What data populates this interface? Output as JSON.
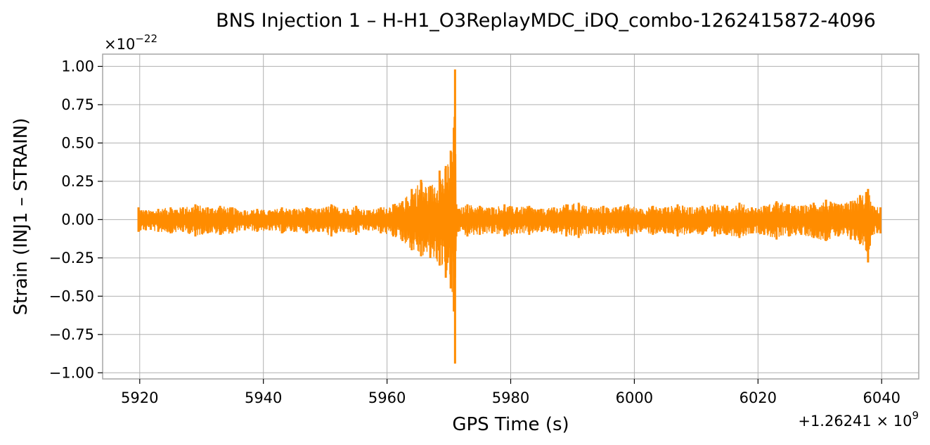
{
  "chart_data": {
    "type": "line",
    "title": "BNS Injection 1 – H-H1_O3ReplayMDC_iDQ_combo-1262415872-4096",
    "xlabel": "GPS Time (s)",
    "ylabel": "Strain (INJ1 – STRAIN)",
    "x_offset_text": "+1.26241",
    "x_offset_exponent": "9",
    "y_scale_text": "×10",
    "y_scale_exponent": "−22",
    "x_ticks": [
      5920,
      5940,
      5960,
      5980,
      6000,
      6020,
      6040
    ],
    "x_tick_labels": [
      "5920",
      "5940",
      "5960",
      "5980",
      "6000",
      "6020",
      "6040"
    ],
    "y_ticks": [
      1.0,
      0.75,
      0.5,
      0.25,
      0.0,
      -0.25,
      -0.5,
      -0.75,
      -1.0
    ],
    "y_tick_labels": [
      "1.00",
      "0.75",
      "0.50",
      "0.25",
      "0.00",
      "−0.25",
      "−0.50",
      "−0.75",
      "−1.00"
    ],
    "xlim": [
      5914,
      6046
    ],
    "ylim": [
      -1.04,
      1.08
    ],
    "grid": true,
    "line_color": "#ff8c00",
    "series": [
      {
        "x": [
          5919.8,
          5921,
          5923,
          5925,
          5927,
          5929,
          5931,
          5933,
          5935,
          5937,
          5939,
          5941,
          5943,
          5945,
          5947,
          5949,
          5951,
          5953,
          5955,
          5957,
          5959,
          5961,
          5962.5,
          5964,
          5965.5,
          5967,
          5968.5,
          5969.5,
          5970.3,
          5970.8,
          5971.0,
          5971.2,
          5971.5,
          5973,
          5975,
          5977,
          5979,
          5981,
          5983,
          5985,
          5987,
          5989,
          5991,
          5993,
          5995,
          5997,
          5999,
          6001,
          6003,
          6005,
          6007,
          6009,
          6011,
          6013,
          6015,
          6017,
          6019,
          6021,
          6023,
          6025,
          6027,
          6029,
          6031,
          6033,
          6035,
          6036.5,
          6037.5,
          6037.8,
          6038.5,
          6039.8
        ],
        "y_upper": [
          0.08,
          0.06,
          0.07,
          0.08,
          0.08,
          0.1,
          0.08,
          0.09,
          0.08,
          0.06,
          0.07,
          0.06,
          0.08,
          0.07,
          0.08,
          0.07,
          0.1,
          0.07,
          0.09,
          0.06,
          0.08,
          0.1,
          0.12,
          0.2,
          0.26,
          0.22,
          0.32,
          0.35,
          0.45,
          0.6,
          0.98,
          0.1,
          0.07,
          0.1,
          0.09,
          0.08,
          0.1,
          0.08,
          0.09,
          0.07,
          0.08,
          0.1,
          0.11,
          0.08,
          0.09,
          0.08,
          0.1,
          0.07,
          0.09,
          0.08,
          0.1,
          0.08,
          0.09,
          0.1,
          0.09,
          0.11,
          0.08,
          0.09,
          0.12,
          0.1,
          0.09,
          0.11,
          0.13,
          0.1,
          0.12,
          0.16,
          0.18,
          0.2,
          0.09,
          0.08
        ],
        "y_lower": [
          -0.08,
          -0.07,
          -0.08,
          -0.09,
          -0.08,
          -0.11,
          -0.09,
          -0.1,
          -0.09,
          -0.07,
          -0.08,
          -0.07,
          -0.09,
          -0.08,
          -0.09,
          -0.08,
          -0.11,
          -0.08,
          -0.1,
          -0.07,
          -0.09,
          -0.11,
          -0.14,
          -0.2,
          -0.24,
          -0.25,
          -0.3,
          -0.38,
          -0.45,
          -0.6,
          -0.94,
          -0.11,
          -0.08,
          -0.11,
          -0.1,
          -0.09,
          -0.11,
          -0.09,
          -0.1,
          -0.08,
          -0.09,
          -0.11,
          -0.12,
          -0.09,
          -0.1,
          -0.09,
          -0.11,
          -0.08,
          -0.1,
          -0.09,
          -0.11,
          -0.09,
          -0.1,
          -0.11,
          -0.1,
          -0.12,
          -0.09,
          -0.1,
          -0.13,
          -0.11,
          -0.1,
          -0.12,
          -0.14,
          -0.11,
          -0.13,
          -0.16,
          -0.2,
          -0.28,
          -0.1,
          -0.09
        ]
      }
    ]
  }
}
